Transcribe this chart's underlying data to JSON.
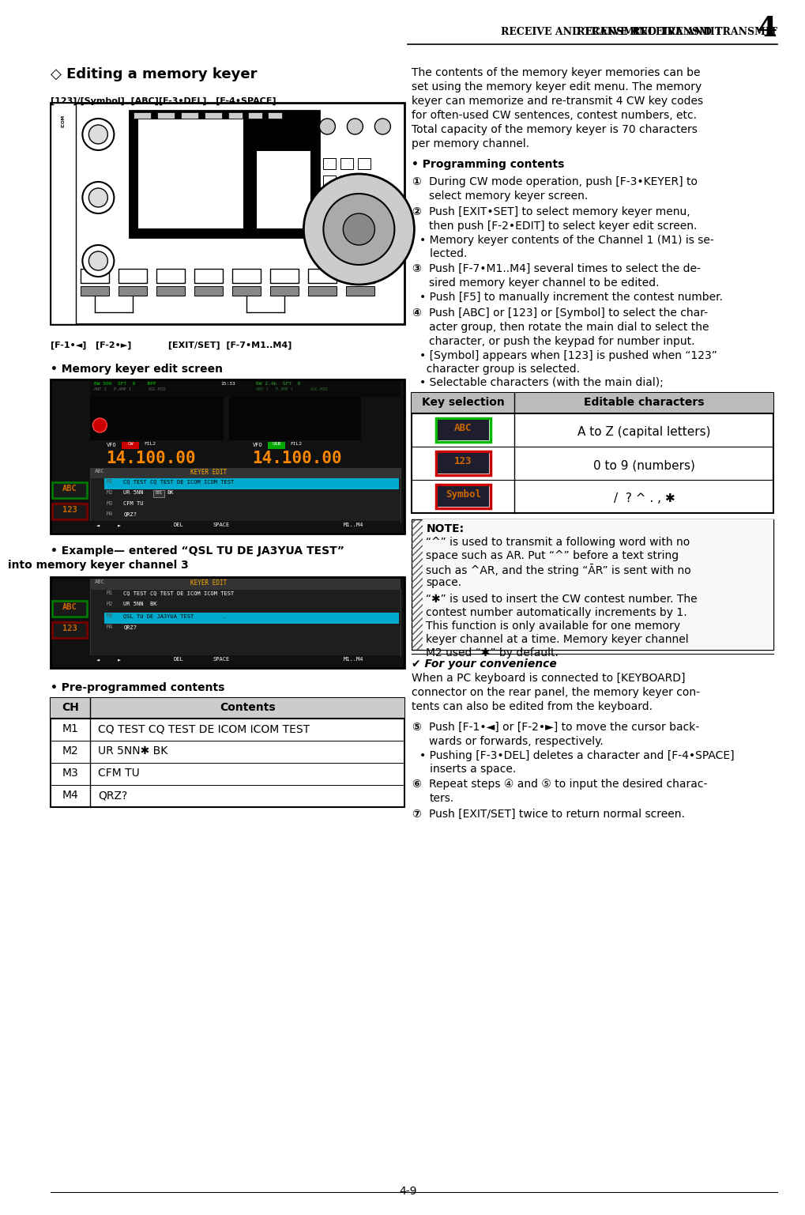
{
  "page_header": "RECEIVE AND TRANSMIT",
  "page_num": "4",
  "section_title": "◇ Editing a memory keyer",
  "left_label_top": "[123]/[Symbol]  [ABC][F-3•DEL]   [F-4•SPACE]",
  "left_label_bot": "[F-1•◄]   [F-2•►]            [EXIT/SET]  [F-7•M1..M4]",
  "edit_screen_label": "• Memory keyer edit screen",
  "example_title": "• Example— entered “QSL TU DE JA3YUA TEST”",
  "example_sub": "into memory keyer channel 3",
  "preprog_title": "• Pre-programmed contents",
  "preprog_headers": [
    "CH",
    "Contents"
  ],
  "preprog_rows": [
    [
      "M1",
      "CQ TEST CQ TEST DE ICOM ICOM TEST"
    ],
    [
      "M2",
      "UR 5NN✱ BK"
    ],
    [
      "M3",
      "CFM TU"
    ],
    [
      "M4",
      "QRZ?"
    ]
  ],
  "right_intro": "The contents of the memory keyer memories can be\nset using the memory keyer edit menu. The memory\nkeyer can memorize and re-transmit 4 CW key codes\nfor often-used CW sentences, contest numbers, etc.\nTotal capacity of the memory keyer is 70 characters\nper memory channel.",
  "prog_title": "• Programming contents",
  "s1num": "①",
  "s1text": "During CW mode operation, push [F-3•KEYER] to\nselect memory keyer screen.",
  "s2num": "②",
  "s2text": "Push [EXIT•SET] to select memory keyer menu,\nthen push [F-2•EDIT] to select keyer edit screen.",
  "s2bullet": "• Memory keyer contents of the Channel 1 (M1) is se-\n   lected.",
  "s3num": "③",
  "s3text": "Push [F-7•M1..M4] several times to select the de-\nsired memory keyer channel to be edited.",
  "s3bullet": "• Push [F5] to manually increment the contest number.",
  "s4num": "④",
  "s4text": "Push [ABC] or [123] or [Symbol] to select the char-\nacter group, then rotate the main dial to select the\ncharacter, or push the keypad for number input.",
  "s4b1": "• [Symbol] appears when [123] is pushed when “123”\n  character group is selected.",
  "s4b2": "• Selectable characters (with the main dial);",
  "tbl_h1": "Key selection",
  "tbl_h2": "Editable characters",
  "tbl_rows": [
    {
      "key": "ABC",
      "border": "#00bb00",
      "chars": "A to Z (capital letters)"
    },
    {
      "key": "123",
      "border": "#cc0000",
      "chars": "0 to 9 (numbers)"
    },
    {
      "key": "Symbol",
      "border": "#cc0000",
      "chars": "/  ? ^ . , ✱"
    }
  ],
  "note_title": "NOTE:",
  "note1": "“^” is used to transmit a following word with no\nspace such as AR. Put “^” before a text string\nsuch as ^AR, and the string “ĀR” is sent with no\nspace.",
  "note2": "“✱” is used to insert the CW contest number. The\ncontest number automatically increments by 1.\nThis function is only available for one memory\nkeyer channel at a time. Memory keyer channel\nM2 used “✱” by default.",
  "conv_title": "✔ For your convenience",
  "conv_text": "When a PC keyboard is connected to [KEYBOARD]\nconnector on the rear panel, the memory keyer con-\ntents can also be edited from the keyboard.",
  "s5num": "⑤",
  "s5text": "Push [F-1•◄] or [F-2•►] to move the cursor back-\nwards or forwards, respectively.",
  "s5bullet": "• Pushing [F-3•DEL] deletes a character and [F-4•SPACE]\n   inserts a space.",
  "s6num": "⑥",
  "s6text": "Repeat steps ④ and ⑤ to input the desired charac-\nters.",
  "s7num": "⑦",
  "s7text": "Push [EXIT/SET] twice to return normal screen.",
  "page_number": "4-9"
}
